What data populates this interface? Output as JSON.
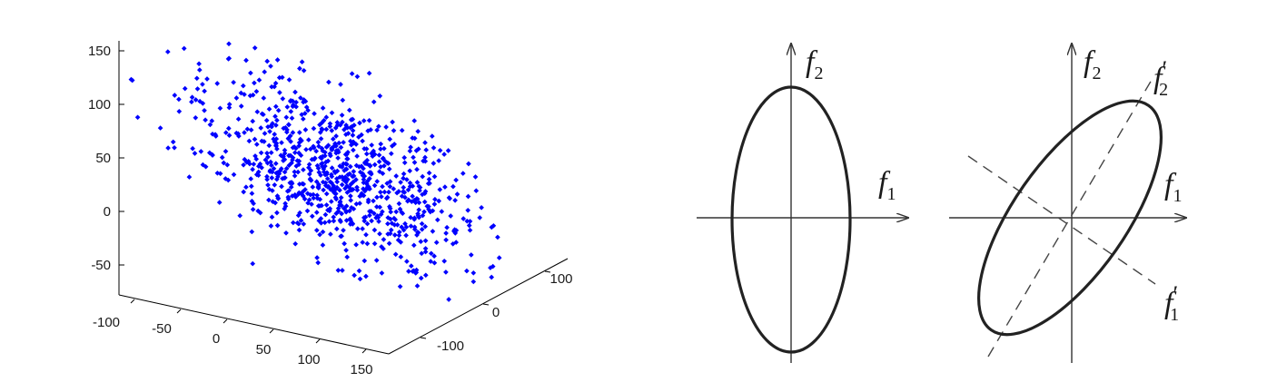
{
  "scatter": {
    "marker_color": "#0000ff",
    "z_ticks": [
      "150",
      "100",
      "50",
      "0",
      "-50"
    ],
    "x_ticks": [
      "-100",
      "-50",
      "0",
      "50",
      "100",
      "150"
    ],
    "y_ticks": [
      "100",
      "0",
      "-100"
    ],
    "point_count": 900
  },
  "panel_a": {
    "x_axis": {
      "base": "f",
      "sub": "1"
    },
    "y_axis": {
      "base": "f",
      "sub": "2"
    }
  },
  "panel_b": {
    "x_axis": {
      "base": "f",
      "sub": "1"
    },
    "y_axis": {
      "base": "f",
      "sub": "2"
    },
    "x_prime": {
      "base": "f",
      "sub": "1",
      "prime": "′"
    },
    "y_prime": {
      "base": "f",
      "sub": "2",
      "prime": "′"
    }
  }
}
